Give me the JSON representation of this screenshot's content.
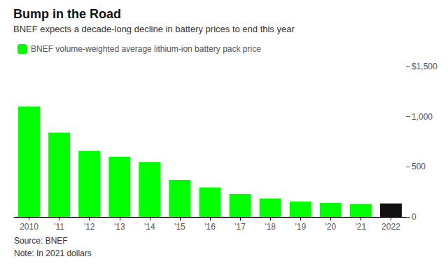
{
  "chart_data": {
    "type": "bar",
    "title": "Bump in the Road",
    "subtitle": "BNEF expects a decade-long decline in battery prices to end this year",
    "annotations": [
      "Source: BNEF",
      "Note: In 2021 dollars"
    ],
    "categories": [
      "2010",
      "'11",
      "'12",
      "'13",
      "'14",
      "'15",
      "'16",
      "'17",
      "'18",
      "'19",
      "'20",
      "'21",
      "2022"
    ],
    "series": [
      {
        "name": "BNEF volume-weighted average lithium-ion battery pack price",
        "color": "#00FF00",
        "colors": [
          "#00FF00",
          "#00FF00",
          "#00FF00",
          "#00FF00",
          "#00FF00",
          "#00FF00",
          "#00FF00",
          "#00FF00",
          "#00FF00",
          "#00FF00",
          "#00FF00",
          "#00FF00",
          "#111111"
        ],
        "values": [
          1100,
          840,
          660,
          600,
          550,
          370,
          295,
          230,
          185,
          155,
          140,
          130,
          135
        ]
      }
    ],
    "ylim": [
      0,
      1500
    ],
    "yticks": [
      0,
      500,
      {
        "value": 1000,
        "label": "1,000"
      },
      {
        "value": 1500,
        "label": "$1,500"
      }
    ],
    "grid": false,
    "legend": "top-left"
  }
}
